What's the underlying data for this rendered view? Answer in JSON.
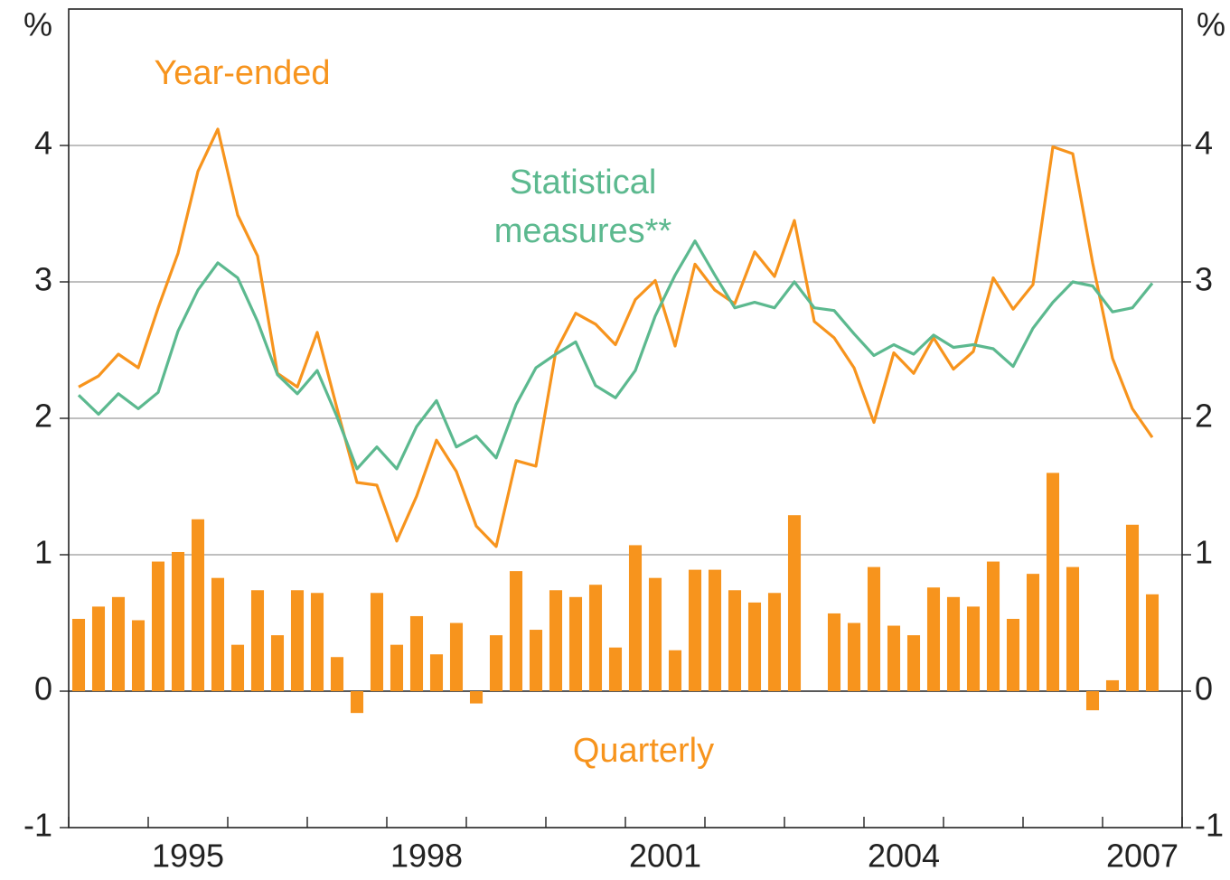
{
  "chart_data": {
    "type": "combo",
    "y_unit": "%",
    "xlim": [
      1994,
      2008
    ],
    "xtick_marks": [
      1994,
      1995,
      1996,
      1997,
      1998,
      1999,
      2000,
      2001,
      2002,
      2003,
      2004,
      2005,
      2006,
      2007,
      2008
    ],
    "xticks": [
      {
        "value": 1995.5,
        "label": "1995"
      },
      {
        "value": 1998.5,
        "label": "1998"
      },
      {
        "value": 2001.5,
        "label": "2001"
      },
      {
        "value": 2004.5,
        "label": "2004"
      },
      {
        "value": 2007.5,
        "label": "2007"
      }
    ],
    "ylim": [
      -1,
      5
    ],
    "yticks": [
      -1,
      0,
      1,
      2,
      3,
      4
    ],
    "y2lim": [
      -1,
      5
    ],
    "y2ticks": [
      -1,
      0,
      1,
      2,
      3,
      4
    ],
    "grid": true,
    "x": [
      1994.125,
      1994.375,
      1994.625,
      1994.875,
      1995.125,
      1995.375,
      1995.625,
      1995.875,
      1996.125,
      1996.375,
      1996.625,
      1996.875,
      1997.125,
      1997.375,
      1997.625,
      1997.875,
      1998.125,
      1998.375,
      1998.625,
      1998.875,
      1999.125,
      1999.375,
      1999.625,
      1999.875,
      2000.125,
      2000.375,
      2000.625,
      2000.875,
      2001.125,
      2001.375,
      2001.625,
      2001.875,
      2002.125,
      2002.375,
      2002.625,
      2002.875,
      2003.125,
      2003.375,
      2003.625,
      2003.875,
      2004.125,
      2004.375,
      2004.625,
      2004.875,
      2005.125,
      2005.375,
      2005.625,
      2005.875,
      2006.125,
      2006.375,
      2006.625,
      2006.875,
      2007.125,
      2007.375,
      2007.625
    ],
    "series": [
      {
        "name": "Quarterly",
        "type": "bar",
        "color": "#f7941d",
        "values": [
          0.53,
          0.62,
          0.69,
          0.52,
          0.95,
          1.02,
          1.26,
          0.83,
          0.34,
          0.74,
          0.41,
          0.74,
          0.72,
          0.25,
          -0.16,
          0.72,
          0.34,
          0.55,
          0.27,
          0.5,
          -0.09,
          0.41,
          0.88,
          0.45,
          0.74,
          0.69,
          0.78,
          0.32,
          1.07,
          0.83,
          0.3,
          0.89,
          0.89,
          0.74,
          0.65,
          0.72,
          1.29,
          0,
          0.57,
          0.5,
          0.91,
          0.48,
          0.41,
          0.76,
          0.69,
          0.62,
          0.95,
          0.53,
          0.86,
          1.6,
          0.91,
          -0.14,
          0.08,
          1.22,
          0.71
        ]
      },
      {
        "name": "Year-ended",
        "type": "line",
        "color": "#f7941d",
        "values": [
          2.23,
          2.31,
          2.47,
          2.37,
          2.81,
          3.21,
          3.81,
          4.12,
          3.49,
          3.19,
          2.33,
          2.23,
          2.63,
          2.07,
          1.53,
          1.51,
          1.1,
          1.43,
          1.84,
          1.61,
          1.21,
          1.06,
          1.69,
          1.65,
          2.49,
          2.77,
          2.69,
          2.54,
          2.87,
          3.01,
          2.53,
          3.13,
          2.94,
          2.84,
          3.22,
          3.04,
          3.45,
          2.71,
          2.59,
          2.37,
          1.97,
          2.48,
          2.33,
          2.59,
          2.36,
          2.49,
          3.03,
          2.8,
          2.98,
          3.99,
          3.94,
          3.14,
          2.44,
          2.07,
          1.86
        ]
      },
      {
        "name": "Statistical measures**",
        "type": "line",
        "color": "#5cb98f",
        "values": [
          2.17,
          2.03,
          2.18,
          2.07,
          2.19,
          2.64,
          2.94,
          3.14,
          3.03,
          2.71,
          2.32,
          2.18,
          2.35,
          2.01,
          1.63,
          1.79,
          1.63,
          1.94,
          2.13,
          1.79,
          1.87,
          1.71,
          2.1,
          2.37,
          2.47,
          2.56,
          2.24,
          2.15,
          2.35,
          2.75,
          3.05,
          3.3,
          3.05,
          2.81,
          2.85,
          2.81,
          3.0,
          2.81,
          2.79,
          2.62,
          2.46,
          2.54,
          2.47,
          2.61,
          2.52,
          2.54,
          2.51,
          2.38,
          2.66,
          2.85,
          3.0,
          2.97,
          2.78,
          2.81,
          2.99
        ]
      }
    ]
  }
}
